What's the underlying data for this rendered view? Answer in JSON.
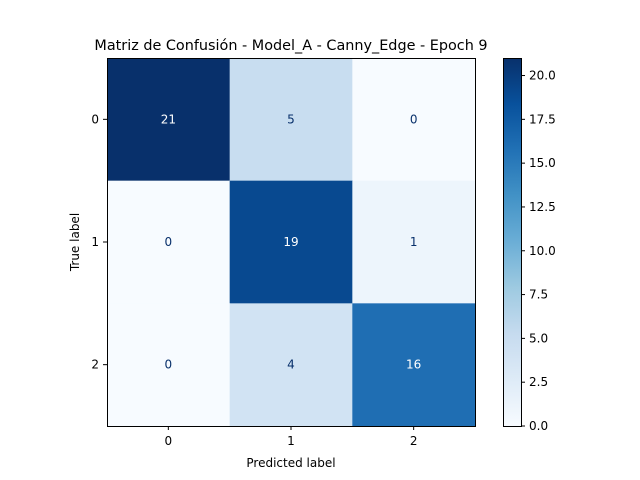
{
  "chart_data": {
    "type": "heatmap",
    "title": "Matriz de Confusión - Model_A - Canny_Edge - Epoch 9",
    "xlabel": "Predicted label",
    "ylabel": "True label",
    "x_categories": [
      "0",
      "1",
      "2"
    ],
    "y_categories": [
      "0",
      "1",
      "2"
    ],
    "values": [
      [
        21,
        5,
        0
      ],
      [
        0,
        19,
        1
      ],
      [
        0,
        4,
        16
      ]
    ],
    "colormap": "Blues",
    "color_range": [
      0,
      21
    ],
    "colorbar_ticks": [
      "0.0",
      "2.5",
      "5.0",
      "7.5",
      "10.0",
      "12.5",
      "15.0",
      "17.5",
      "20.0"
    ],
    "colorbar_tick_values": [
      0,
      2.5,
      5,
      7.5,
      10,
      12.5,
      15,
      17.5,
      20
    ],
    "colors": {
      "text_dark_cell": "#ffffff",
      "text_light_cell": "#08306b"
    }
  }
}
